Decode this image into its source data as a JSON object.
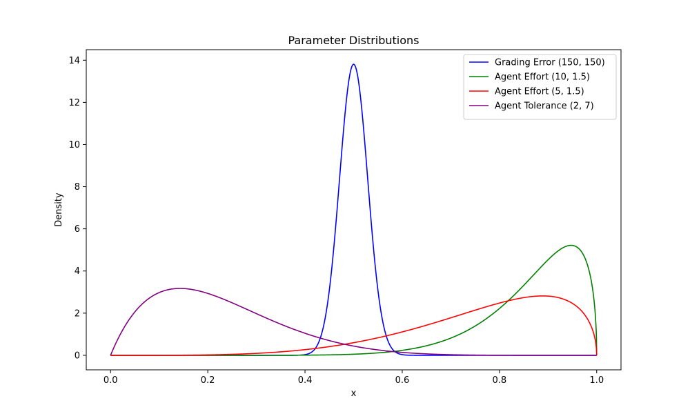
{
  "chart_data": {
    "type": "line",
    "title": "Parameter Distributions",
    "xlabel": "x",
    "ylabel": "Density",
    "xlim": [
      -0.05,
      1.05
    ],
    "ylim": [
      -0.69,
      14.5
    ],
    "x_ticks": [
      "0.0",
      "0.2",
      "0.4",
      "0.6",
      "0.8",
      "1.0"
    ],
    "y_ticks": [
      "0",
      "2",
      "4",
      "6",
      "8",
      "10",
      "12",
      "14"
    ],
    "grid": false,
    "legend_position": "top-right",
    "series": [
      {
        "name": "Grading Error (150, 150)",
        "color": "#0000ff",
        "distribution": "beta",
        "a": 150,
        "b": 150
      },
      {
        "name": "Agent Effort (10, 1.5)",
        "color": "#008000",
        "distribution": "beta",
        "a": 10,
        "b": 1.5
      },
      {
        "name": "Agent Effort (5, 1.5)",
        "color": "#ff0000",
        "distribution": "beta",
        "a": 5,
        "b": 1.5
      },
      {
        "name": "Agent Tolerance (2, 7)",
        "color": "#800080",
        "distribution": "beta",
        "a": 2,
        "b": 7
      }
    ]
  }
}
